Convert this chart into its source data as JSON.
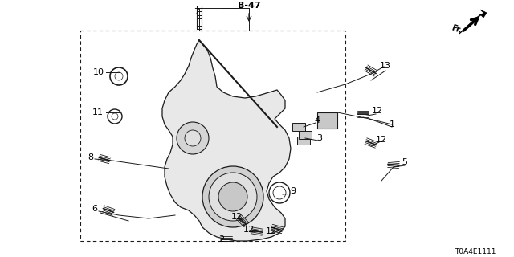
{
  "bg_color": "#ffffff",
  "diagram_label": "B-47",
  "diagram_code": "T0A4E1111",
  "fig_width": 6.4,
  "fig_height": 3.2,
  "dpi": 100
}
